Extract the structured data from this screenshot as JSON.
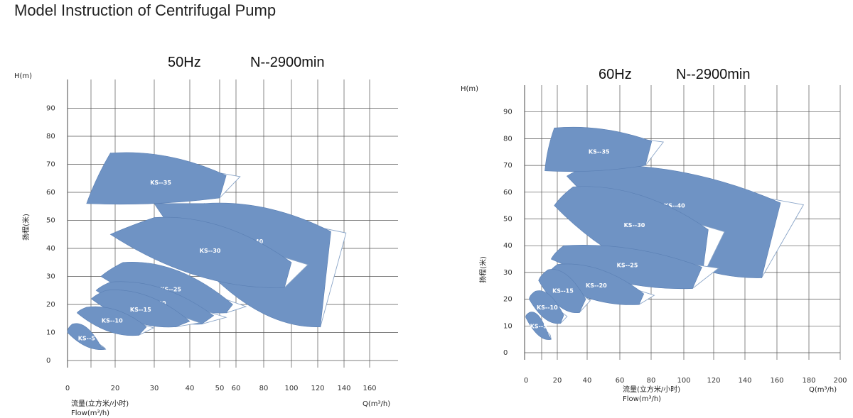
{
  "page_title": "Model Instruction of Centrifugal Pump",
  "chart_data": [
    {
      "type": "area",
      "frequency": "50Hz",
      "speed": "N--2900min",
      "ylabel_top": "H(m)",
      "ylabel_side": "扬程(米)",
      "xlabel_cn": "流量(立方米/小时)",
      "xlabel_en": "Flow(m³/h)",
      "xlabel_right": "Q(m³/h)",
      "y_ticks": [
        0,
        10,
        20,
        30,
        40,
        50,
        60,
        70,
        80,
        90
      ],
      "x_ticks": [
        0,
        20,
        30,
        40,
        50,
        60,
        80,
        100,
        120,
        140,
        160
      ],
      "ylim": [
        0,
        100
      ],
      "series": [
        {
          "name": "KS--5",
          "points": [
            [
              0,
              10
            ],
            [
              2,
              13
            ],
            [
              14,
              5
            ],
            [
              16,
              4
            ]
          ]
        },
        {
          "name": "KS--10",
          "points": [
            [
              4,
              17
            ],
            [
              8,
              19
            ],
            [
              28,
              12
            ],
            [
              26,
              9
            ]
          ]
        },
        {
          "name": "KS--15",
          "points": [
            [
              10,
              22
            ],
            [
              16,
              25
            ],
            [
              40,
              14
            ],
            [
              36,
              12
            ]
          ]
        },
        {
          "name": "KS--20",
          "points": [
            [
              12,
              25
            ],
            [
              18,
              28
            ],
            [
              48,
              16
            ],
            [
              44,
              13
            ]
          ]
        },
        {
          "name": "KS--25",
          "points": [
            [
              14,
              30
            ],
            [
              22,
              35
            ],
            [
              58,
              20
            ],
            [
              54,
              17
            ]
          ]
        },
        {
          "name": "KS--30",
          "points": [
            [
              18,
              45
            ],
            [
              30,
              51
            ],
            [
              100,
              35
            ],
            [
              95,
              26
            ]
          ]
        },
        {
          "name": "KS--35",
          "points": [
            [
              8,
              56
            ],
            [
              18,
              74
            ],
            [
              54,
              66
            ],
            [
              50,
              58
            ]
          ]
        },
        {
          "name": "KS--40",
          "points": [
            [
              30,
              56
            ],
            [
              45,
              56
            ],
            [
              130,
              46
            ],
            [
              122,
              12
            ]
          ]
        }
      ],
      "grid": true
    },
    {
      "type": "area",
      "frequency": "60Hz",
      "speed": "N--2900min",
      "ylabel_top": "H(m)",
      "ylabel_side": "扬程(米)",
      "xlabel_cn": "流量(立方米/小时)",
      "xlabel_en": "Flow(m³/h)",
      "xlabel_right": "Q(m³/h)",
      "y_ticks": [
        0,
        10,
        20,
        30,
        40,
        50,
        60,
        70,
        80,
        90
      ],
      "x_ticks": [
        0,
        20,
        40,
        60,
        80,
        100,
        120,
        140,
        160,
        180,
        200
      ],
      "ylim": [
        0,
        100
      ],
      "series": [
        {
          "name": "KS--5",
          "points": [
            [
              0,
              13
            ],
            [
              2,
              15
            ],
            [
              14,
              7
            ],
            [
              16,
              5
            ]
          ]
        },
        {
          "name": "KS--10",
          "points": [
            [
              2,
              20
            ],
            [
              6,
              23
            ],
            [
              24,
              14
            ],
            [
              22,
              11
            ]
          ]
        },
        {
          "name": "KS--15",
          "points": [
            [
              8,
              27
            ],
            [
              14,
              31
            ],
            [
              38,
              20
            ],
            [
              34,
              15
            ]
          ]
        },
        {
          "name": "KS--20",
          "points": [
            [
              12,
              28
            ],
            [
              20,
              33
            ],
            [
              75,
              22
            ],
            [
              72,
              18
            ]
          ]
        },
        {
          "name": "KS--25",
          "points": [
            [
              16,
              35
            ],
            [
              24,
              40
            ],
            [
              112,
              32
            ],
            [
              106,
              24
            ]
          ]
        },
        {
          "name": "KS--30",
          "points": [
            [
              18,
              55
            ],
            [
              30,
              62
            ],
            [
              116,
              46
            ],
            [
              112,
              28
            ]
          ]
        },
        {
          "name": "KS--35",
          "points": [
            [
              12,
              68
            ],
            [
              18,
              84
            ],
            [
              80,
              79
            ],
            [
              76,
              70
            ]
          ]
        },
        {
          "name": "KS--40",
          "points": [
            [
              26,
              66
            ],
            [
              40,
              70
            ],
            [
              162,
              56
            ],
            [
              150,
              28
            ]
          ]
        }
      ],
      "grid": true
    }
  ]
}
